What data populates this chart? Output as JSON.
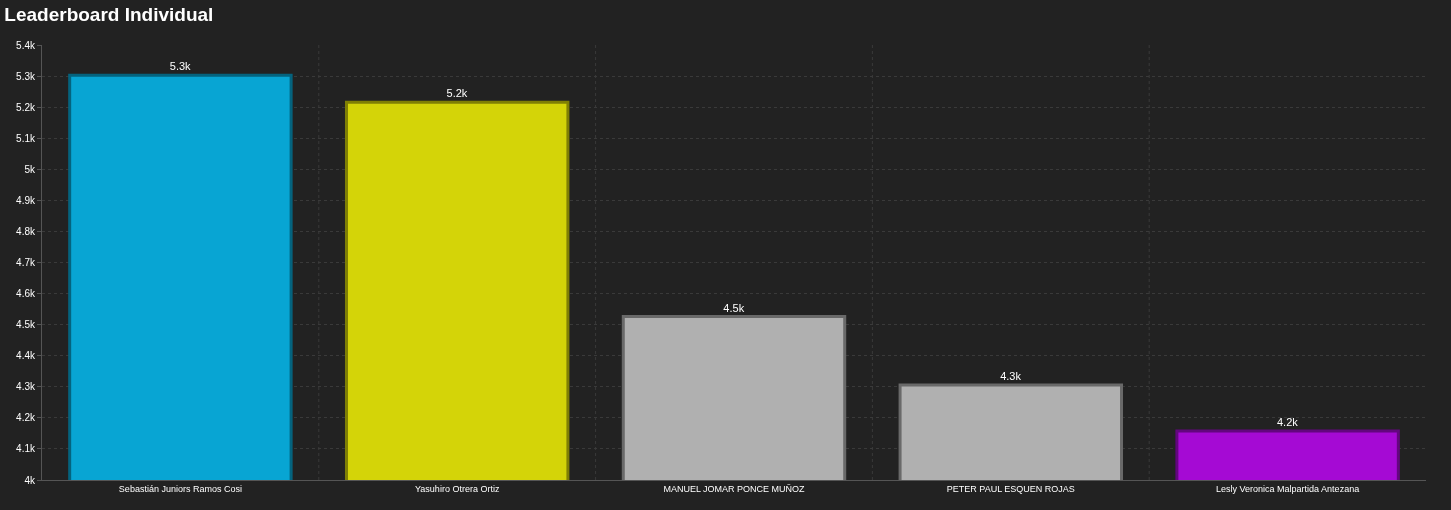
{
  "chart_data": {
    "type": "bar",
    "title": "Leaderboard Individual",
    "categories": [
      "Sebastián Juniors Ramos Cosi",
      "Yasuhiro Otrera Ortiz",
      "MANUEL JOMAR PONCE MUÑOZ",
      "PETER PAUL ESQUEN ROJAS",
      "Lesly Veronica Malpartida Antezana"
    ],
    "values": [
      5303,
      5216,
      4526,
      4306,
      4158
    ],
    "colors": [
      "#08a5d3",
      "#d4d408",
      "#b0b0b0",
      "#b0b0b0",
      "#a50ad4"
    ],
    "value_labels": [
      "5.3k",
      "5.2k",
      "4.5k",
      "4.3k",
      "4.2k"
    ],
    "ylim": [
      4000,
      5400
    ],
    "yticks": [
      {
        "value": 4000,
        "label": "4k"
      },
      {
        "value": 4100,
        "label": "4.1k"
      },
      {
        "value": 4200,
        "label": "4.2k"
      },
      {
        "value": 4300,
        "label": "4.3k"
      },
      {
        "value": 4400,
        "label": "4.4k"
      },
      {
        "value": 4500,
        "label": "4.5k"
      },
      {
        "value": 4600,
        "label": "4.6k"
      },
      {
        "value": 4700,
        "label": "4.7k"
      },
      {
        "value": 4800,
        "label": "4.8k"
      },
      {
        "value": 4900,
        "label": "4.9k"
      },
      {
        "value": 5000,
        "label": "5k"
      },
      {
        "value": 5100,
        "label": "5.1k"
      },
      {
        "value": 5200,
        "label": "5.2k"
      },
      {
        "value": 5300,
        "label": "5.3k"
      },
      {
        "value": 5400,
        "label": "5.4k"
      }
    ],
    "grid": true,
    "legend": false
  }
}
